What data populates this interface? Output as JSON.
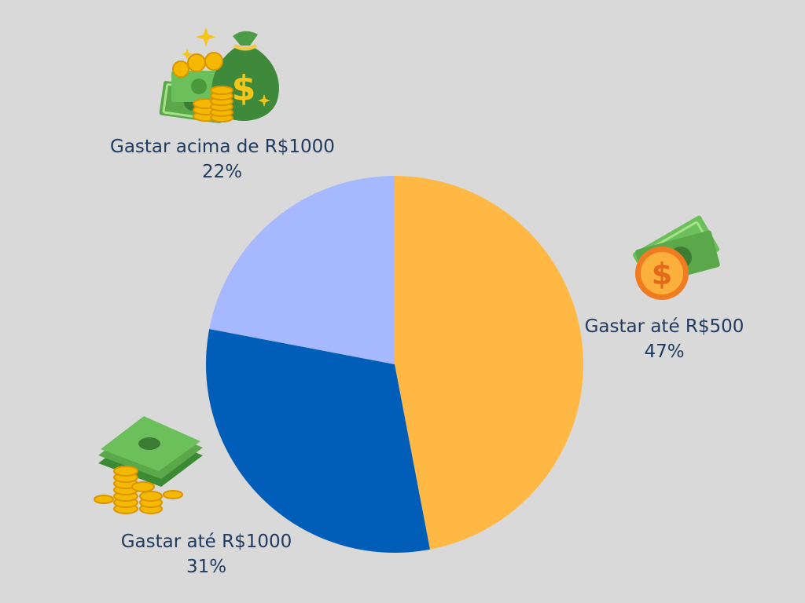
{
  "chart_data": {
    "type": "pie",
    "slices": [
      {
        "label": "Gastar até R$500",
        "value_label": "47%",
        "value": 47,
        "color": "#ffb843"
      },
      {
        "label": "Gastar até R$1000",
        "value_label": "31%",
        "value": 31,
        "color": "#005eb8"
      },
      {
        "label": "Gastar acima de R$1000",
        "value_label": "22%",
        "value": 22,
        "color": "#a6b8ff"
      }
    ]
  },
  "colors": {
    "background": "#d9d9d9",
    "label_text": "#1f3a5f"
  },
  "icons": {
    "slice_0": "cash-with-coin-icon",
    "slice_1": "cash-stack-with-coins-icon",
    "slice_2": "money-bag-with-coins-icon"
  }
}
